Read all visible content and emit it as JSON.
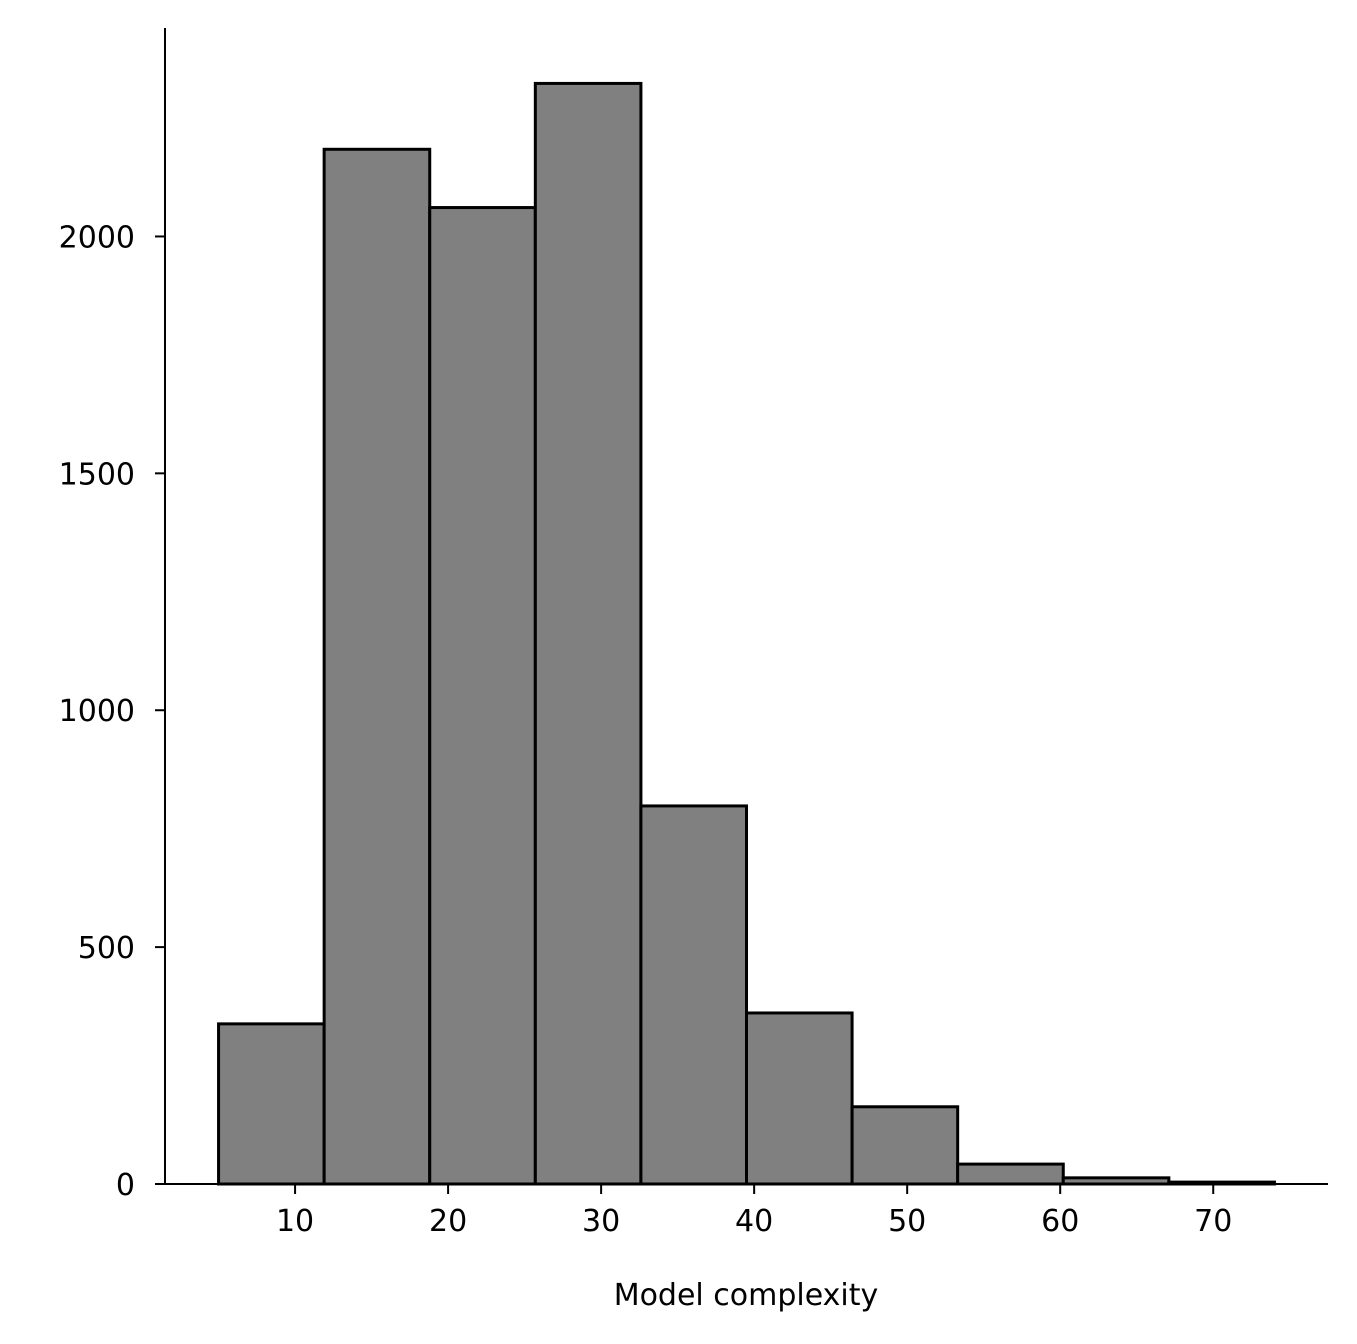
{
  "chart_data": {
    "type": "bar",
    "subtype": "histogram",
    "title": "",
    "xlabel": "Model complexity",
    "ylabel": "",
    "bin_edges": [
      5,
      11.9,
      18.8,
      25.7,
      32.6,
      39.5,
      46.4,
      53.3,
      60.2,
      67.1,
      74
    ],
    "values": [
      338,
      2184,
      2061,
      2323,
      798,
      361,
      163,
      42,
      13,
      4
    ],
    "xlim": [
      1.5,
      77.5
    ],
    "ylim": [
      0,
      2440
    ],
    "xticks": [
      10,
      20,
      30,
      40,
      50,
      60,
      70
    ],
    "yticks": [
      0,
      500,
      1000,
      1500,
      2000
    ],
    "bar_color": "#808080",
    "edge_color": "#000000",
    "grid": false,
    "legend": "none"
  }
}
